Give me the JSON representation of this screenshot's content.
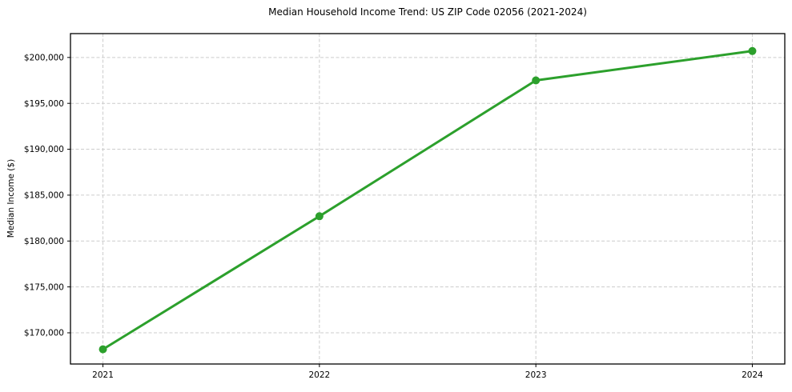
{
  "figure": {
    "background": "#ffffff"
  },
  "chart_data": {
    "type": "line",
    "title": "Median Household Income Trend: US ZIP Code 02056 (2021-2024)",
    "xlabel": "",
    "ylabel": "Median Income ($)",
    "x": [
      2021,
      2022,
      2023,
      2024
    ],
    "xtick_labels": [
      "2021",
      "2022",
      "2023",
      "2024"
    ],
    "series": [
      {
        "name": "median-household-income",
        "values": [
          168200,
          182700,
          197500,
          200700
        ],
        "color": "#2ca02c"
      }
    ],
    "yticks": [
      170000,
      175000,
      180000,
      185000,
      190000,
      195000,
      200000
    ],
    "ytick_labels": [
      "$170,000",
      "$175,000",
      "$180,000",
      "$185,000",
      "$190,000",
      "$195,000",
      "$200,000"
    ],
    "xlim": [
      2020.85,
      2024.15
    ],
    "ylim": [
      166600,
      202600
    ],
    "grid": true,
    "grid_color": "#cccccc",
    "grid_dash": "4 2.5",
    "axis_color": "#000000",
    "line_width": 3,
    "marker": "circle",
    "marker_radius": 5,
    "legend": "none"
  }
}
